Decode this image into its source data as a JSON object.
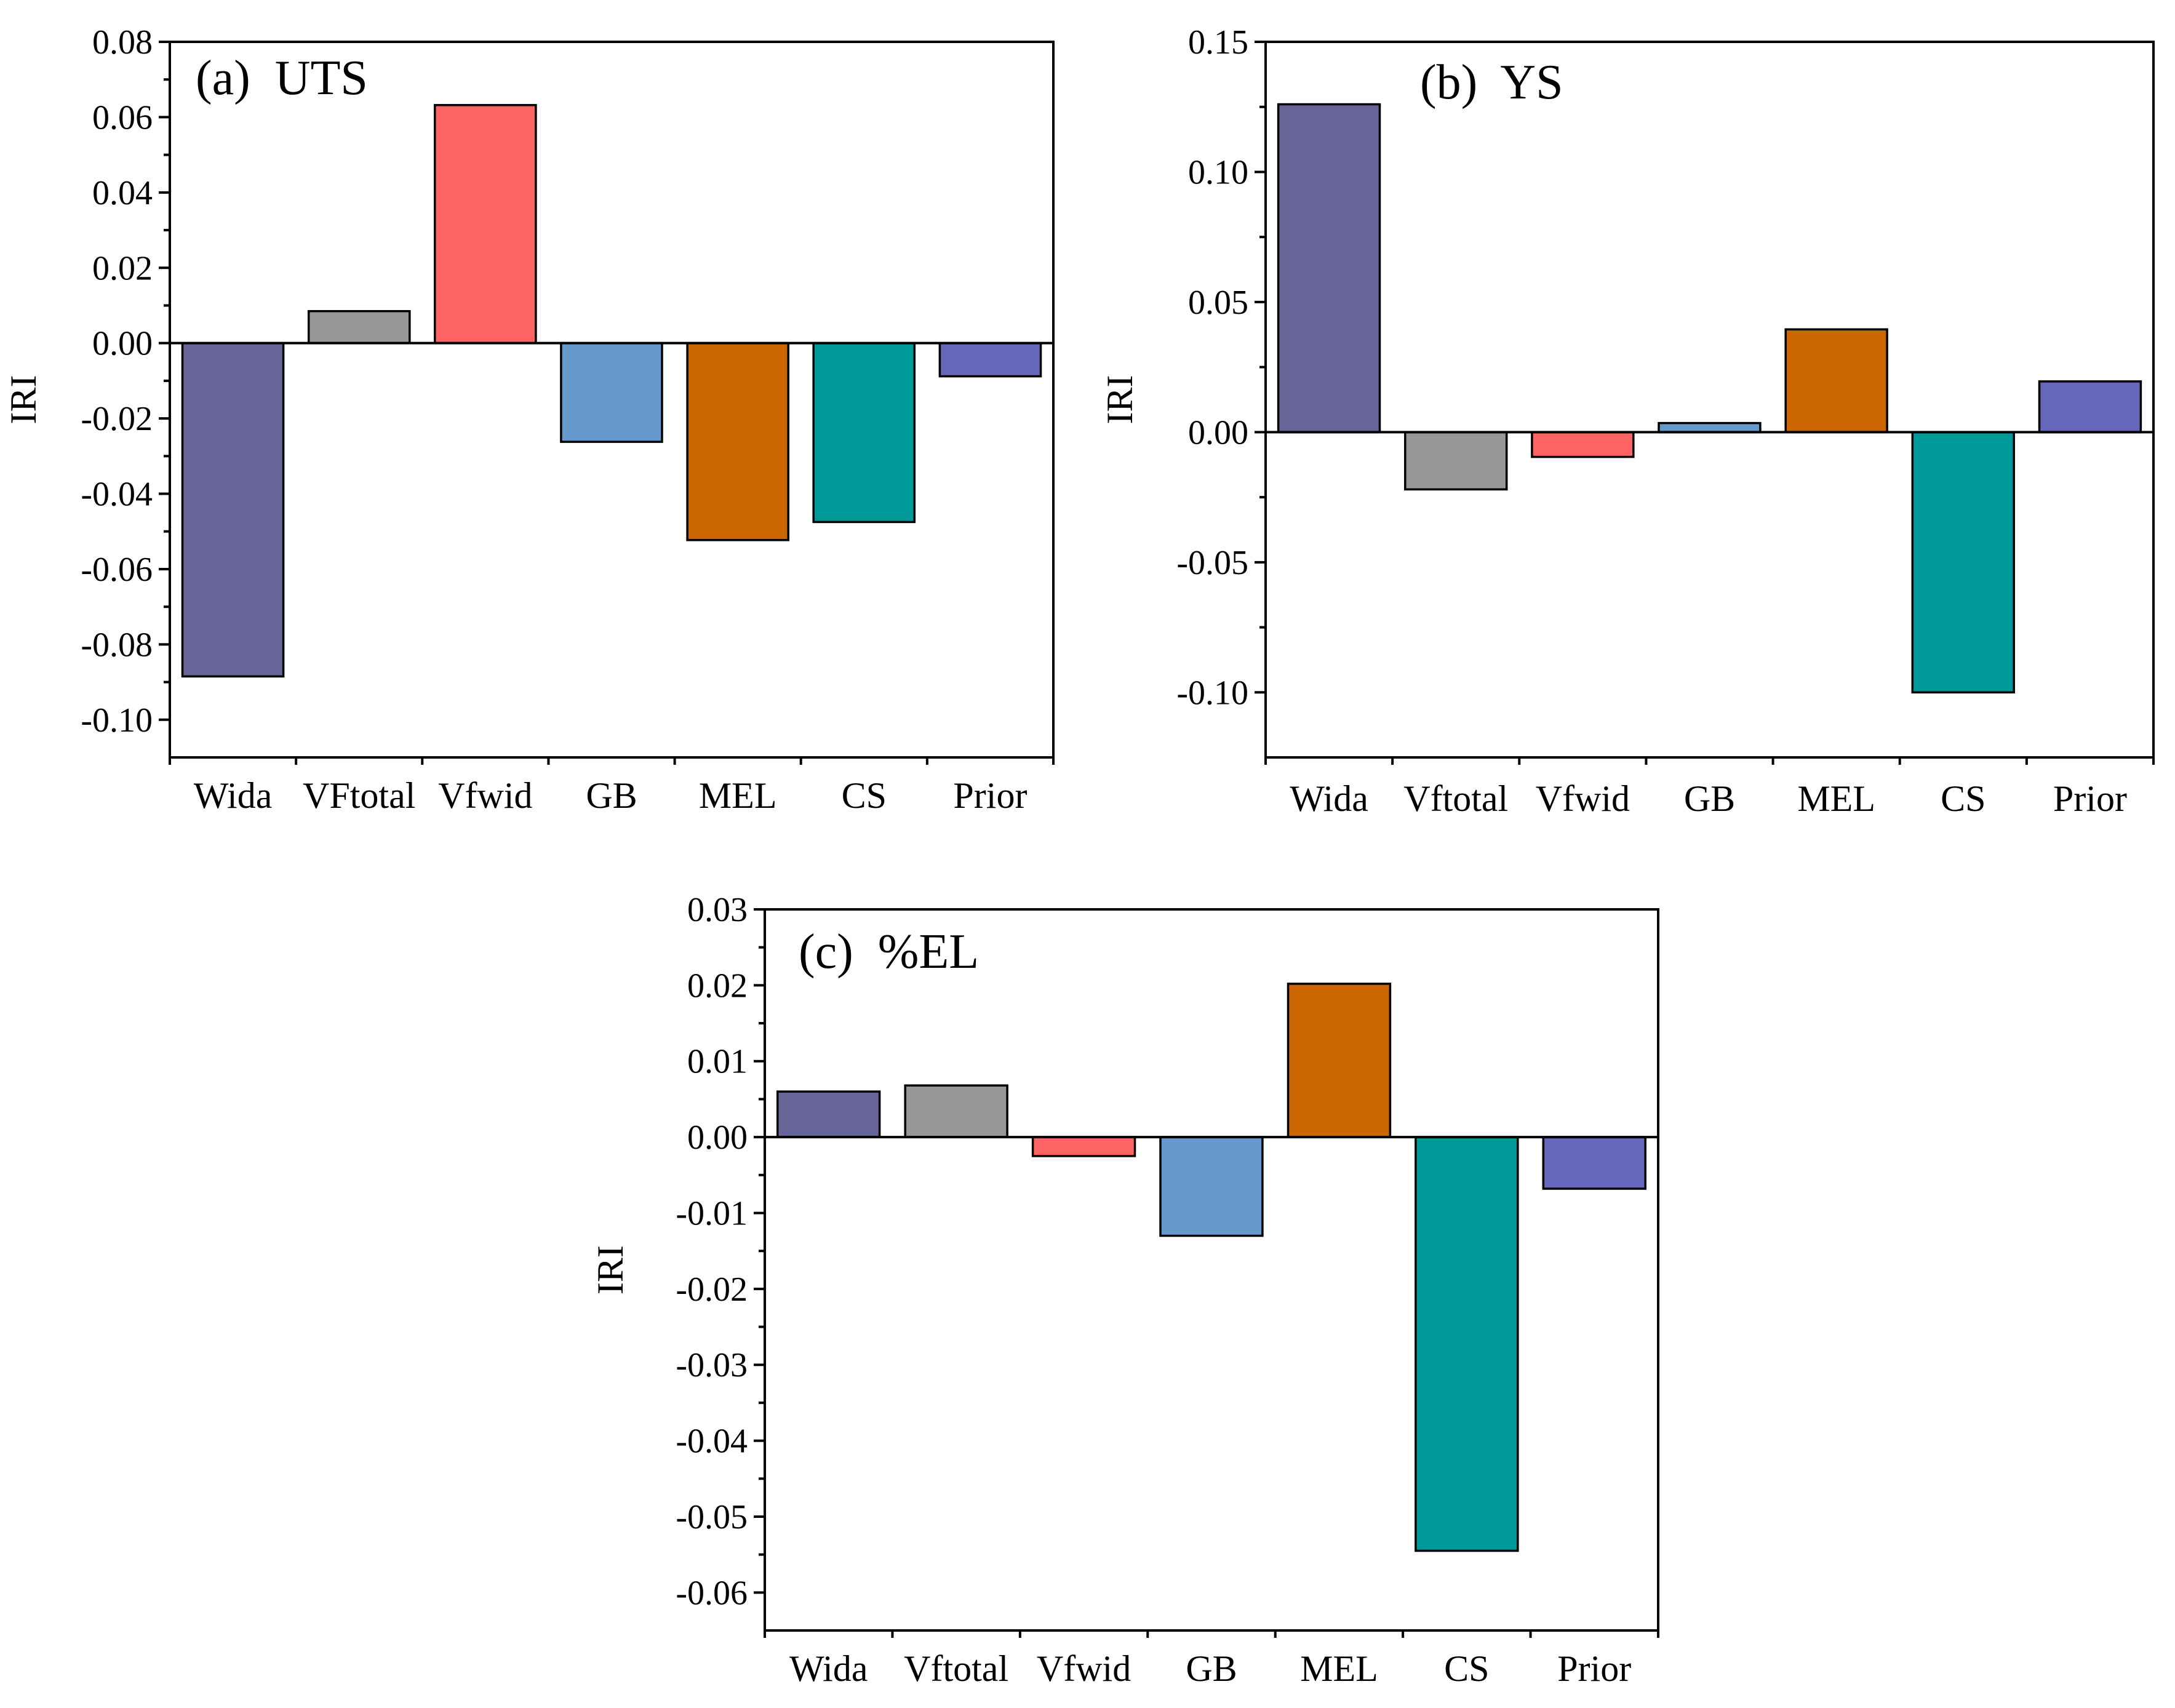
{
  "chart_data": [
    {
      "type": "bar",
      "panel_title": "(a)  UTS",
      "ylabel": "IRI",
      "xlabel": "",
      "categories": [
        "Wida",
        "VFtotal",
        "Vfwid",
        "GB",
        "MEL",
        "CS",
        "Prior"
      ],
      "values": [
        -0.0885,
        0.0085,
        0.0632,
        -0.0262,
        -0.0523,
        -0.0475,
        -0.0088
      ],
      "ylim": [
        -0.11,
        0.08
      ],
      "yticks": [
        0.08,
        0.06,
        0.04,
        0.02,
        0.0,
        -0.02,
        -0.04,
        -0.06,
        -0.08,
        -0.1
      ],
      "ytick_labels": [
        "0.08",
        "0.06",
        "0.04",
        "0.02",
        "0.00",
        "-0.02",
        "-0.04",
        "-0.06",
        "-0.08",
        "-0.10"
      ],
      "grid": false,
      "legend": "none"
    },
    {
      "type": "bar",
      "panel_title": "(b)  YS",
      "ylabel": "IRI",
      "xlabel": "",
      "categories": [
        "Wida",
        "Vftotal",
        "Vfwid",
        "GB",
        "MEL",
        "CS",
        "Prior"
      ],
      "values": [
        0.126,
        -0.022,
        -0.0095,
        0.0035,
        0.0395,
        -0.1,
        0.0195
      ],
      "ylim": [
        -0.125,
        0.15
      ],
      "yticks": [
        0.15,
        0.1,
        0.05,
        0.0,
        -0.05,
        -0.1
      ],
      "ytick_labels": [
        "0.15",
        "0.10",
        "0.05",
        "0.00",
        "-0.05",
        "-0.10"
      ],
      "grid": false,
      "legend": "none"
    },
    {
      "type": "bar",
      "panel_title": "(c)  %EL",
      "ylabel": "IRI",
      "xlabel": "",
      "categories": [
        "Wida",
        "Vftotal",
        "Vfwid",
        "GB",
        "MEL",
        "CS",
        "Prior"
      ],
      "values": [
        0.006,
        0.0068,
        -0.0025,
        -0.013,
        0.0202,
        -0.0545,
        -0.0068
      ],
      "ylim": [
        -0.065,
        0.03
      ],
      "yticks": [
        0.03,
        0.02,
        0.01,
        0.0,
        -0.01,
        -0.02,
        -0.03,
        -0.04,
        -0.05,
        -0.06
      ],
      "ytick_labels": [
        "0.03",
        "0.02",
        "0.01",
        "0.00",
        "-0.01",
        "-0.02",
        "-0.03",
        "-0.04",
        "-0.05",
        "-0.06"
      ],
      "grid": false,
      "legend": "none"
    }
  ],
  "colors": {
    "bars": [
      "#676497",
      "#979797",
      "#ff6464",
      "#6699cc",
      "#cc6600",
      "#009999",
      "#6666bb"
    ],
    "axes": "#000000",
    "background": "#ffffff"
  }
}
